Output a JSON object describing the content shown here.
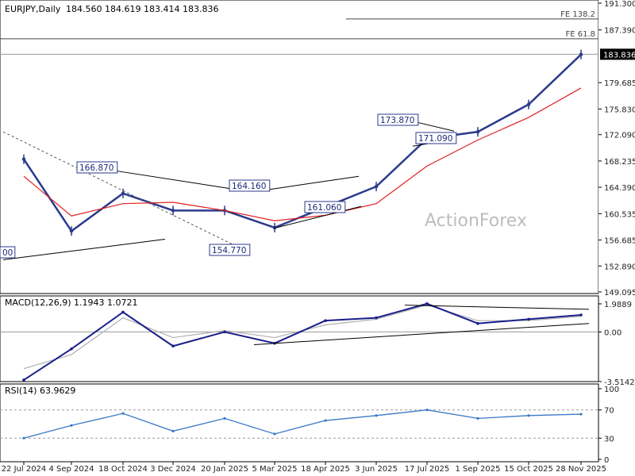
{
  "header": {
    "symbol": "EURJPY,Daily",
    "ohlc": "184.560 184.619 183.414 183.836"
  },
  "watermark": "ActionForex",
  "price_panel": {
    "ticks": [
      {
        "label": "191.300",
        "value": 191.3
      },
      {
        "label": "187.390",
        "value": 187.39
      },
      {
        "label": "183.836",
        "value": 183.836,
        "current": true
      },
      {
        "label": "179.685",
        "value": 179.685
      },
      {
        "label": "175.830",
        "value": 175.83
      },
      {
        "label": "172.090",
        "value": 172.09
      },
      {
        "label": "168.235",
        "value": 168.235
      },
      {
        "label": "164.390",
        "value": 164.39
      },
      {
        "label": "160.535",
        "value": 160.535
      },
      {
        "label": "156.685",
        "value": 156.685
      },
      {
        "label": "152.890",
        "value": 152.89
      },
      {
        "label": "149.095",
        "value": 149.095
      }
    ],
    "fib_lines": [
      {
        "label": "FE 138.2",
        "value": 189.0
      },
      {
        "label": "FE 61.8",
        "value": 186.1
      }
    ],
    "price_labels": [
      {
        "label": "166.870",
        "value": 166.87
      },
      {
        "label": "164.160",
        "value": 164.16
      },
      {
        "label": "161.060",
        "value": 161.06
      },
      {
        "label": "154.770",
        "value": 154.77
      },
      {
        "label": "173.870",
        "value": 173.87
      },
      {
        "label": "171.090",
        "value": 171.09
      },
      {
        "label": "00",
        "value": 154.2
      }
    ]
  },
  "macd_panel": {
    "title": "MACD(12,26,9) 1.1943 1.0721",
    "ticks": [
      {
        "label": "1.9889",
        "value": 1.9889
      },
      {
        "label": "0.00",
        "value": 0.0
      },
      {
        "label": "-3.5142",
        "value": -3.5142
      }
    ]
  },
  "rsi_panel": {
    "title": "RSI(14) 63.9629",
    "ticks": [
      {
        "label": "100",
        "value": 100
      },
      {
        "label": "70",
        "value": 70
      },
      {
        "label": "30",
        "value": 30
      },
      {
        "label": "0",
        "value": 0
      }
    ]
  },
  "x_axis": {
    "labels": [
      "22 Jul 2024",
      "4 Sep 2024",
      "18 Oct 2024",
      "3 Dec 2024",
      "20 Jan 2025",
      "5 Mar 2025",
      "18 Apr 2025",
      "3 Jun 2025",
      "17 Jul 2025",
      "1 Sep 2025",
      "15 Oct 2025",
      "28 Nov 2025"
    ]
  },
  "chart_data": {
    "type": "line",
    "title": "EURJPY,Daily",
    "series": [
      {
        "name": "EURJPY",
        "x": [
          "22 Jul 2024",
          "4 Sep 2024",
          "18 Oct 2024",
          "3 Dec 2024",
          "20 Jan 2025",
          "5 Mar 2025",
          "18 Apr 2025",
          "3 Jun 2025",
          "17 Jul 2025",
          "1 Sep 2025",
          "15 Oct 2025",
          "28 Nov 2025"
        ],
        "values": [
          168.5,
          158.0,
          163.5,
          161.0,
          161.0,
          158.5,
          161.5,
          164.5,
          171.5,
          172.5,
          176.5,
          183.8
        ]
      },
      {
        "name": "SMA",
        "x": [
          "22 Jul 2024",
          "4 Sep 2024",
          "18 Oct 2024",
          "3 Dec 2024",
          "20 Jan 2025",
          "5 Mar 2025",
          "18 Apr 2025",
          "3 Jun 2025",
          "17 Jul 2025",
          "1 Sep 2025",
          "15 Oct 2025",
          "28 Nov 2025"
        ],
        "values": [
          166.0,
          160.2,
          162.0,
          162.2,
          161.0,
          159.5,
          160.3,
          162.0,
          167.5,
          171.3,
          174.6,
          178.9
        ]
      }
    ],
    "macd": {
      "x": [
        "22 Jul 2024",
        "4 Sep 2024",
        "18 Oct 2024",
        "3 Dec 2024",
        "20 Jan 2025",
        "5 Mar 2025",
        "18 Apr 2025",
        "3 Jun 2025",
        "17 Jul 2025",
        "1 Sep 2025",
        "15 Oct 2025",
        "28 Nov 2025"
      ],
      "values": [
        -3.4,
        -1.2,
        1.4,
        -1.0,
        0.0,
        -0.8,
        0.8,
        1.0,
        2.0,
        0.6,
        0.9,
        1.2
      ],
      "signal": [
        -2.6,
        -1.6,
        1.0,
        -0.4,
        0.1,
        -0.4,
        0.5,
        0.9,
        1.9,
        0.8,
        0.8,
        1.1
      ],
      "ylim": [
        -3.5142,
        1.9889
      ]
    },
    "rsi": {
      "x": [
        "22 Jul 2024",
        "4 Sep 2024",
        "18 Oct 2024",
        "3 Dec 2024",
        "20 Jan 2025",
        "5 Mar 2025",
        "18 Apr 2025",
        "3 Jun 2025",
        "17 Jul 2025",
        "1 Sep 2025",
        "15 Oct 2025",
        "28 Nov 2025"
      ],
      "values": [
        30,
        48,
        65,
        40,
        58,
        36,
        55,
        62,
        70,
        58,
        62,
        64
      ],
      "ylim": [
        0,
        100
      ]
    },
    "ylim": [
      149.095,
      191.3
    ],
    "xlabel": "",
    "ylabel": ""
  },
  "colors": {
    "price": "#2b3a8c",
    "sma": "#e02020",
    "macd": "#1a1f8a",
    "signal": "#b0b0b0",
    "rsi": "#3a78c8",
    "grid": "#c8c8c8",
    "text": "#222222"
  }
}
